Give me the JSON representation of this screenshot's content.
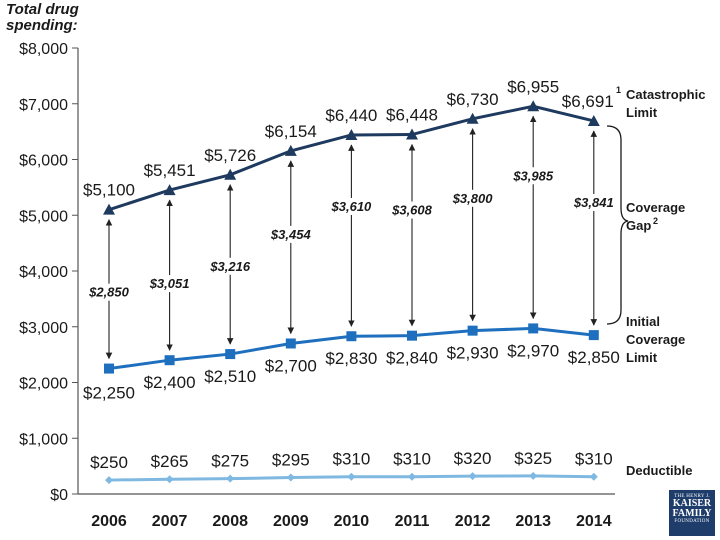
{
  "chart_data": {
    "type": "line",
    "ylabel": "Total drug spending:",
    "ylim": [
      0,
      8000
    ],
    "y_ticks": [
      "$0",
      "$1,000",
      "$2,000",
      "$3,000",
      "$4,000",
      "$5,000",
      "$6,000",
      "$7,000",
      "$8,000"
    ],
    "y_tick_values": [
      0,
      1000,
      2000,
      3000,
      4000,
      5000,
      6000,
      7000,
      8000
    ],
    "categories": [
      "2006",
      "2007",
      "2008",
      "2009",
      "2010",
      "2011",
      "2012",
      "2013",
      "2014"
    ],
    "series": [
      {
        "name": "Catastrophic Limit",
        "values": [
          5100,
          5451,
          5726,
          6154,
          6440,
          6448,
          6730,
          6955,
          6691
        ],
        "labels": [
          "$5,100",
          "$5,451",
          "$5,726",
          "$6,154",
          "$6,440",
          "$6,448",
          "$6,730",
          "$6,955",
          "$6,691"
        ],
        "color": "#1f3a5f",
        "marker": "triangle"
      },
      {
        "name": "Initial Coverage Limit",
        "values": [
          2250,
          2400,
          2510,
          2700,
          2830,
          2840,
          2930,
          2970,
          2850
        ],
        "labels": [
          "$2,250",
          "$2,400",
          "$2,510",
          "$2,700",
          "$2,830",
          "$2,840",
          "$2,930",
          "$2,970",
          "$2,850"
        ],
        "color": "#1f6fbf",
        "marker": "square"
      },
      {
        "name": "Deductible",
        "values": [
          250,
          265,
          275,
          295,
          310,
          310,
          320,
          325,
          310
        ],
        "labels": [
          "$250",
          "$265",
          "$275",
          "$295",
          "$310",
          "$310",
          "$320",
          "$325",
          "$310"
        ],
        "color": "#7fb8e0",
        "marker": "diamond"
      }
    ],
    "coverage_gap": {
      "values": [
        2850,
        3051,
        3216,
        3454,
        3610,
        3608,
        3800,
        3985,
        3841
      ],
      "labels": [
        "$2,850",
        "$3,051",
        "$3,216",
        "$3,454",
        "$3,610",
        "$3,608",
        "$3,800",
        "$3,985",
        "$3,841"
      ]
    },
    "legend": {
      "catastrophic_line1": "Catastrophic",
      "catastrophic_line2": "Limit",
      "catastrophic_sup": "1",
      "gap_line1": "Coverage",
      "gap_line2": "Gap",
      "gap_sup": "2",
      "initial_line1": "Initial",
      "initial_line2": "Coverage",
      "initial_line3": "Limit",
      "deductible": "Deductible"
    }
  },
  "logo": {
    "line1": "THE HENRY J.",
    "line2": "KAISER",
    "line3": "FAMILY",
    "line4": "FOUNDATION"
  },
  "colors": {
    "axis": "#555555",
    "arrow": "#222222"
  }
}
